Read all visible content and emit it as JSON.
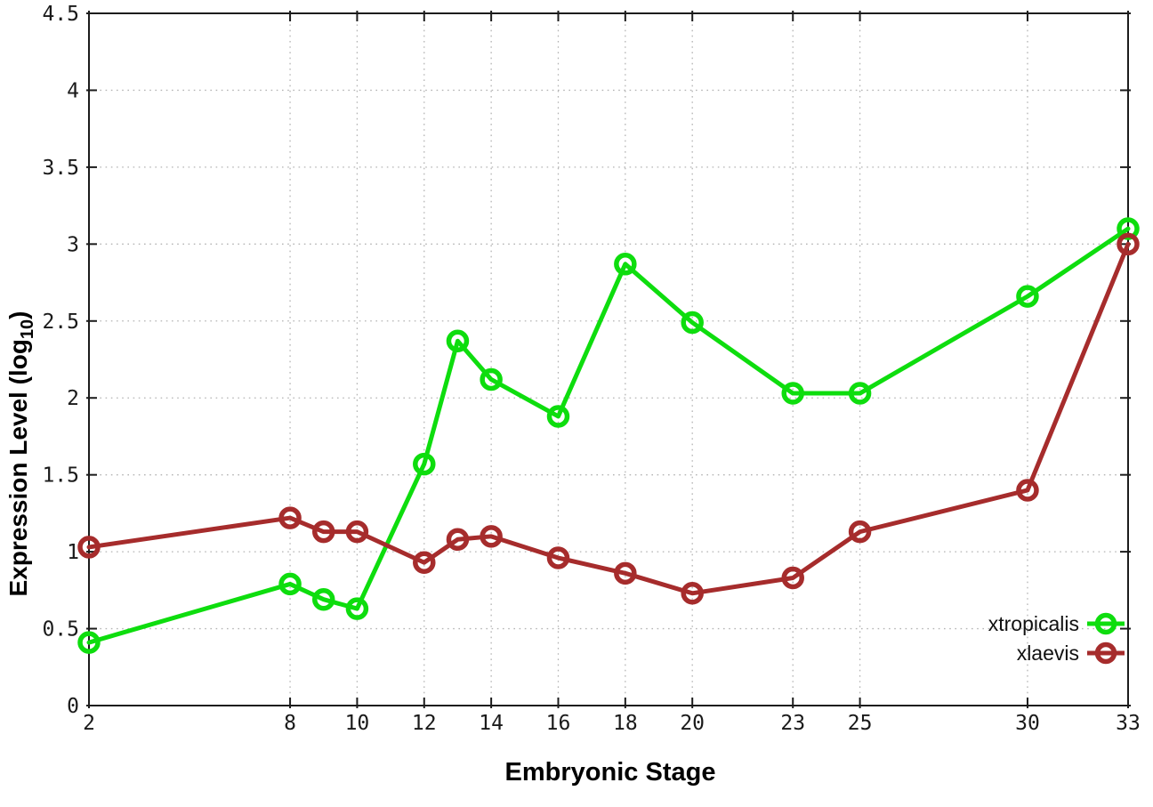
{
  "chart_data": {
    "type": "line",
    "title": "",
    "xlabel": "Embryonic Stage",
    "ylabel": "Expression Level (log10)",
    "ylabel_parts": {
      "prefix": "Expression Level (log",
      "subscript": "10",
      "suffix": ")"
    },
    "xlim": [
      2,
      33
    ],
    "ylim": [
      0,
      4.5
    ],
    "x_ticks": [
      2,
      8,
      10,
      12,
      14,
      16,
      18,
      20,
      23,
      25,
      30,
      33
    ],
    "y_ticks": [
      0,
      0.5,
      1,
      1.5,
      2,
      2.5,
      3,
      3.5,
      4,
      4.5
    ],
    "grid": true,
    "legend_position": "inside-bottom-right",
    "colors": {
      "background": "#ffffff",
      "grid": "#b4b4b4",
      "axis": "#1c1c1c",
      "tick_label": "#1a1a1a"
    },
    "series": [
      {
        "name": "xtropicalis",
        "color": "#0edd0e",
        "marker": "open-circle",
        "x": [
          2,
          8,
          9,
          10,
          12,
          13,
          14,
          16,
          18,
          20,
          23,
          25,
          30,
          33
        ],
        "y": [
          0.41,
          0.79,
          0.69,
          0.63,
          1.57,
          2.37,
          2.12,
          1.88,
          2.87,
          2.49,
          2.03,
          2.03,
          2.66,
          3.1
        ]
      },
      {
        "name": "xlaevis",
        "color": "#a62c2c",
        "marker": "open-circle",
        "x": [
          2,
          8,
          9,
          10,
          12,
          13,
          14,
          16,
          18,
          20,
          23,
          25,
          30,
          33
        ],
        "y": [
          1.03,
          1.22,
          1.13,
          1.13,
          0.93,
          1.08,
          1.1,
          0.96,
          0.86,
          0.73,
          0.83,
          1.13,
          1.4,
          3.0
        ]
      }
    ]
  }
}
